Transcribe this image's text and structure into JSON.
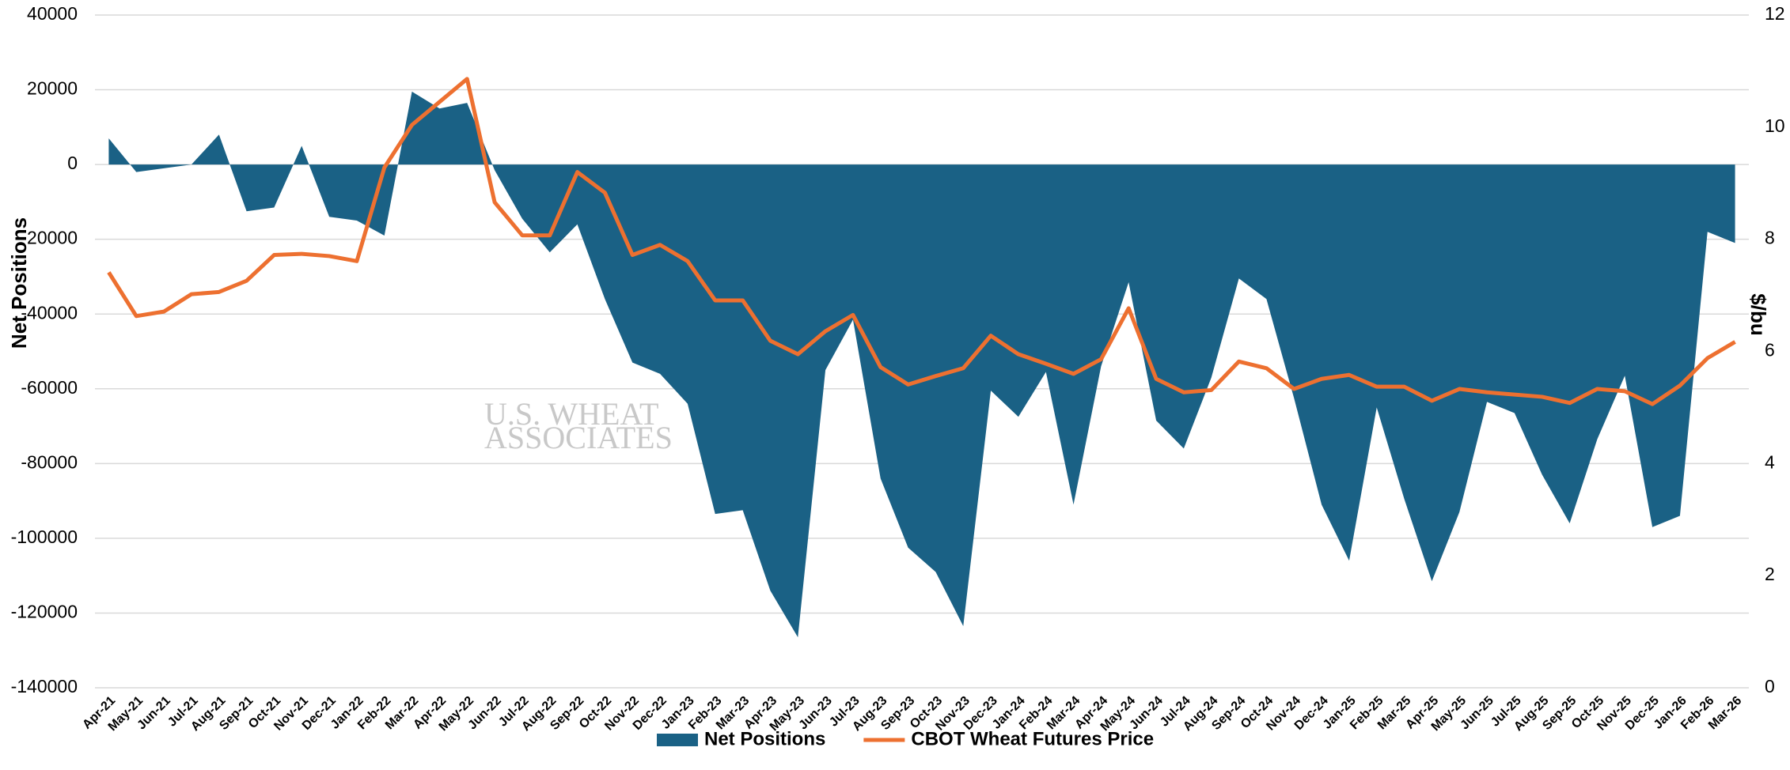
{
  "chart_data": {
    "type": "area_line",
    "watermark": [
      "U.S. WHEAT",
      "ASSOCIATES"
    ],
    "ylabel": "Net Positions",
    "y2label": "$/bu",
    "categories": [
      "Apr-21",
      "May-21",
      "Jun-21",
      "Jul-21",
      "Aug-21",
      "Sep-21",
      "Oct-21",
      "Nov-21",
      "Dec-21",
      "Jan-22",
      "Feb-22",
      "Mar-22",
      "Apr-22",
      "May-22",
      "Jun-22",
      "Jul-22",
      "Aug-22",
      "Sep-22",
      "Oct-22",
      "Nov-22",
      "Dec-22",
      "Jan-23",
      "Feb-23",
      "Mar-23",
      "Apr-23",
      "May-23",
      "Jun-23",
      "Jul-23",
      "Aug-23",
      "Sep-23",
      "Oct-23",
      "Nov-23",
      "Dec-23",
      "Jan-24",
      "Feb-24",
      "Mar-24",
      "Apr-24",
      "May-24",
      "Jun-24",
      "Jul-24",
      "Aug-24",
      "Sep-24",
      "Oct-24",
      "Nov-24",
      "Dec-24",
      "Jan-25",
      "Feb-25",
      "Mar-25",
      "Apr-25",
      "May-25",
      "Jun-25",
      "Jul-25",
      "Aug-25",
      "Sep-25",
      "Oct-25",
      "Nov-25",
      "Dec-25",
      "Jan-26",
      "Feb-26",
      "Mar-26"
    ],
    "series": [
      {
        "name": "Net Positions",
        "color": "#1a6185",
        "kind": "area",
        "values": [
          7000,
          -2000,
          -1000,
          0,
          8000,
          -12500,
          -11500,
          5000,
          -14000,
          -15000,
          -19000,
          19500,
          15000,
          16500,
          -1500,
          -14500,
          -23500,
          -16000,
          -36000,
          -53000,
          -56000,
          -64000,
          -93500,
          -92500,
          -114000,
          -126500,
          -55000,
          -41500,
          -84000,
          -102500,
          -109000,
          -123500,
          -60500,
          -67500,
          -55500,
          -91000,
          -54000,
          -31500,
          -68500,
          -76000,
          -57000,
          -30500,
          -36000,
          -62500,
          -91000,
          -106000,
          -65000,
          -89500,
          -111500,
          -93000,
          -63500,
          -66500,
          -83000,
          -96000,
          -73500,
          -56500,
          -97000,
          -94000,
          -18000,
          -21000
        ]
      },
      {
        "name": "CBOT Wheat Futures Price",
        "color": "#ed7030",
        "kind": "line",
        "axis": "y2",
        "values": [
          7.41,
          6.63,
          6.71,
          7.02,
          7.06,
          7.26,
          7.72,
          7.74,
          7.7,
          7.61,
          9.28,
          10.04,
          10.45,
          10.86,
          8.66,
          8.07,
          8.07,
          9.2,
          8.83,
          7.72,
          7.9,
          7.61,
          6.91,
          6.91,
          6.19,
          5.95,
          6.36,
          6.65,
          5.72,
          5.41,
          5.56,
          5.7,
          6.28,
          5.95,
          5.78,
          5.6,
          5.86,
          6.77,
          5.51,
          5.27,
          5.31,
          5.82,
          5.7,
          5.33,
          5.51,
          5.58,
          5.37,
          5.37,
          5.12,
          5.33,
          5.27,
          5.23,
          5.19,
          5.08,
          5.33,
          5.29,
          5.06,
          5.39,
          5.88,
          6.17
        ]
      }
    ],
    "ylim": [
      -140000,
      40000
    ],
    "yticks": [
      -140000,
      -120000,
      -100000,
      -80000,
      -60000,
      -40000,
      -20000,
      0,
      20000,
      40000
    ],
    "y2lim": [
      0,
      12
    ],
    "y2ticks": [
      0,
      2,
      4,
      6,
      8,
      10,
      12
    ],
    "grid": true,
    "legend": "bottom"
  }
}
